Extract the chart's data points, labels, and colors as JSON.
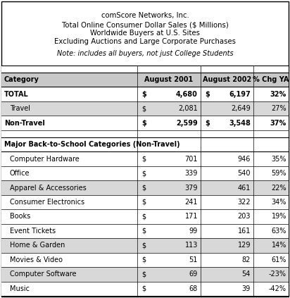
{
  "title_lines": [
    "comScore Networks, Inc.",
    "Total Online Consumer Dollar Sales ($ Millions)",
    "Worldwide Buyers at U.S. Sites",
    "Excluding Auctions and Large Corporate Purchases"
  ],
  "note": "Note: includes all buyers, not just College Students",
  "col_headers": [
    "Category",
    "August 2001",
    "August 2002",
    "% Chg YA"
  ],
  "summary_rows": [
    {
      "cat": "TOTAL",
      "v1": "4,680",
      "v2": "6,197",
      "pct": "32%",
      "bold": true,
      "dollar2": true
    },
    {
      "cat": "  Travel",
      "v1": "2,081",
      "v2": "2,649",
      "pct": "27%",
      "bold": false,
      "dollar2": false
    },
    {
      "cat": "  Non-Travel",
      "v1": "2,599",
      "v2": "3,548",
      "pct": "37%",
      "bold": true,
      "dollar2": true
    }
  ],
  "section_header": "Major Back-to-School Categories (Non-Travel)",
  "detail_rows": [
    {
      "cat": "  Computer Hardware",
      "v1": "701",
      "v2": "946",
      "pct": "35%"
    },
    {
      "cat": "  Office",
      "v1": "339",
      "v2": "540",
      "pct": "59%"
    },
    {
      "cat": "  Apparel & Accessories",
      "v1": "379",
      "v2": "461",
      "pct": "22%"
    },
    {
      "cat": "  Consumer Electronics",
      "v1": "241",
      "v2": "322",
      "pct": "34%"
    },
    {
      "cat": "  Books",
      "v1": "171",
      "v2": "203",
      "pct": "19%"
    },
    {
      "cat": "  Event Tickets",
      "v1": "99",
      "v2": "161",
      "pct": "63%"
    },
    {
      "cat": "  Home & Garden",
      "v1": "113",
      "v2": "129",
      "pct": "14%"
    },
    {
      "cat": "  Movies & Video",
      "v1": "51",
      "v2": "82",
      "pct": "61%"
    },
    {
      "cat": "  Computer Software",
      "v1": "69",
      "v2": "54",
      "pct": "-23%"
    },
    {
      "cat": "  Music",
      "v1": "68",
      "v2": "39",
      "pct": "-42%"
    }
  ],
  "row_colors": {
    "header_row": "#c8c8c8",
    "blank_row": "#ffffff",
    "total_row": "#ffffff",
    "travel_row": "#d8d8d8",
    "nontravel_row": "#ffffff",
    "section_row": "#ffffff",
    "detail_even": "#ffffff",
    "detail_odd": "#d8d8d8"
  },
  "font_size": 7.0,
  "fig_width": 4.12,
  "fig_height": 4.23,
  "dpi": 100
}
